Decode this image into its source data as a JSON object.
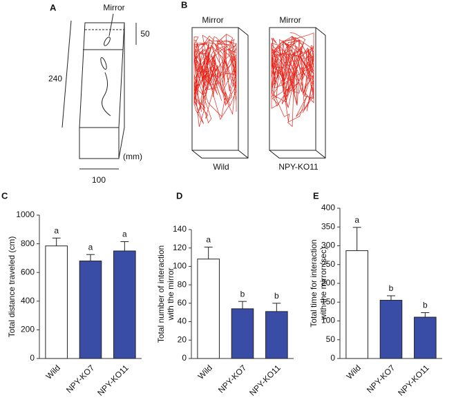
{
  "panel_a": {
    "label": "A",
    "mirror": "Mirror",
    "height": "240",
    "mirror_zone": "50",
    "width": "100",
    "unit": "(mm)"
  },
  "panel_b": {
    "label": "B",
    "mirror_left": "Mirror",
    "mirror_right": "Mirror",
    "left": "Wild",
    "right": "NPY-KO11"
  },
  "chart_data": [
    {
      "type": "bar",
      "panel": "C",
      "ylabel": [
        "Total distance traveled (cm)"
      ],
      "categories": [
        "Wild",
        "NPY-KO7",
        "NPY-KO11"
      ],
      "values": [
        785,
        680,
        750
      ],
      "errors": [
        55,
        45,
        65
      ],
      "colors": [
        "#ffffff",
        "#3a4da6",
        "#3a4da6"
      ],
      "annotations": [
        "a",
        "a",
        "a"
      ],
      "ylim": [
        0,
        1000
      ],
      "yticks": [
        0,
        200,
        400,
        600,
        800,
        1000
      ]
    },
    {
      "type": "bar",
      "panel": "D",
      "ylabel": [
        "Total number of interaction",
        "with the mirror"
      ],
      "categories": [
        "Wild",
        "NPY-KO7",
        "NPY-KO11"
      ],
      "values": [
        108,
        54,
        51
      ],
      "errors": [
        13,
        8,
        9
      ],
      "colors": [
        "#ffffff",
        "#3a4da6",
        "#3a4da6"
      ],
      "annotations": [
        "a",
        "b",
        "b"
      ],
      "ylim": [
        0,
        140
      ],
      "yticks": [
        0,
        20,
        40,
        60,
        80,
        100,
        120,
        140
      ]
    },
    {
      "type": "bar",
      "panel": "E",
      "ylabel": [
        "Total time for interaction",
        "with the mirror (sec)"
      ],
      "categories": [
        "Wild",
        "NPY-KO7",
        "NPY-KO11"
      ],
      "values": [
        287,
        155,
        110
      ],
      "errors": [
        62,
        12,
        12
      ],
      "colors": [
        "#ffffff",
        "#3a4da6",
        "#3a4da6"
      ],
      "annotations": [
        "a",
        "b",
        "b"
      ],
      "ylim": [
        0,
        400
      ],
      "yticks": [
        0,
        50,
        100,
        150,
        200,
        250,
        300,
        350,
        400
      ]
    }
  ]
}
